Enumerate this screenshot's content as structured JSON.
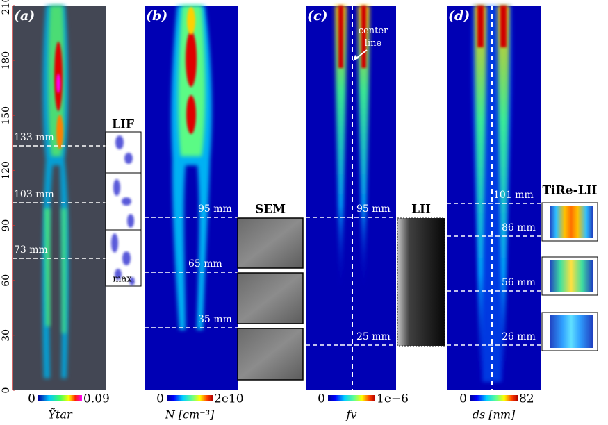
{
  "y_axis": {
    "ticks": [
      0,
      30,
      60,
      90,
      120,
      150,
      180,
      210
    ]
  },
  "panels": [
    {
      "label": "(a)",
      "markers": [
        "133 mm",
        "103 mm",
        "73 mm"
      ],
      "colorbar": {
        "min": "0",
        "max": "0.09",
        "label": "Ỹtar"
      }
    },
    {
      "label": "(b)",
      "markers": [
        "95 mm",
        "65 mm",
        "35 mm"
      ],
      "colorbar": {
        "min": "0",
        "max": "2e10",
        "label": "N [cm⁻³]"
      }
    },
    {
      "label": "(c)",
      "markers": [
        "95 mm",
        "25 mm"
      ],
      "colorbar": {
        "min": "0",
        "max": "1e−6",
        "label": "fv"
      },
      "annotation": "center line"
    },
    {
      "label": "(d)",
      "markers": [
        "101 mm",
        "86 mm",
        "56 mm",
        "26 mm"
      ],
      "colorbar": {
        "min": "0",
        "max": "82",
        "label": "ds [nm]"
      }
    }
  ],
  "insets": {
    "lif": {
      "title": "LIF",
      "note": "max."
    },
    "sem": {
      "title": "SEM"
    },
    "lii": {
      "title": "LII"
    },
    "tire_lii": {
      "title": "TiRe-LII"
    }
  }
}
